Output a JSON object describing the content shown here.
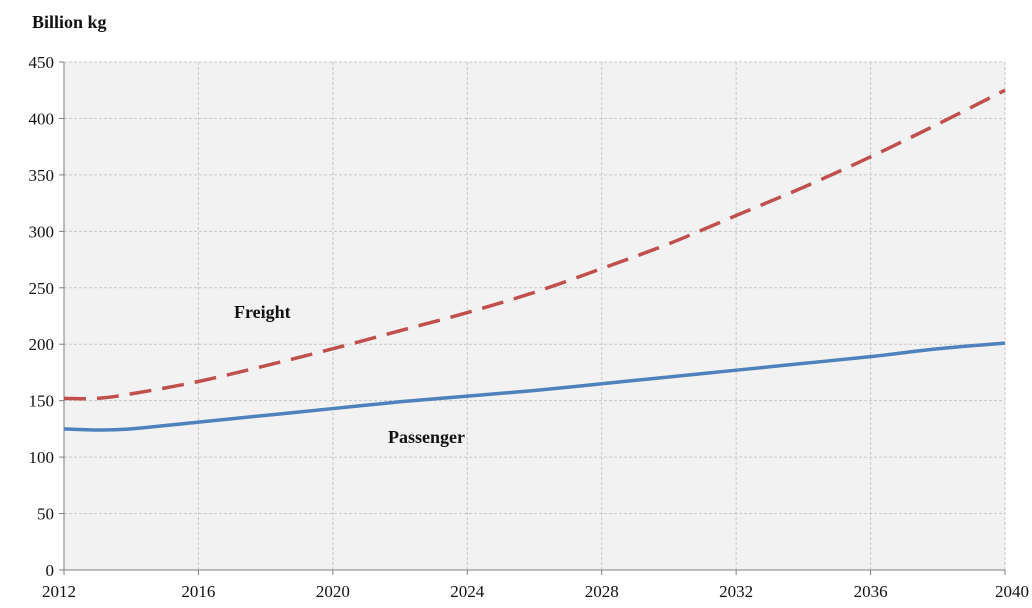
{
  "chart_data": {
    "type": "line",
    "ylabel": "Billion kg",
    "xlim": [
      2012,
      2040
    ],
    "ylim": [
      0,
      450
    ],
    "x_ticks": [
      2012,
      2016,
      2020,
      2024,
      2028,
      2032,
      2036,
      2040
    ],
    "y_ticks": [
      0,
      50,
      100,
      150,
      200,
      250,
      300,
      350,
      400,
      450
    ],
    "grid": true,
    "x": [
      2012,
      2013,
      2014,
      2016,
      2018,
      2020,
      2022,
      2024,
      2026,
      2028,
      2030,
      2032,
      2034,
      2036,
      2038,
      2040
    ],
    "series": [
      {
        "name": "Freight",
        "style": "dashed",
        "color": "#c0504d",
        "values": [
          152,
          152,
          156,
          167,
          181,
          196,
          212,
          228,
          246,
          267,
          289,
          314,
          339,
          366,
          395,
          425
        ]
      },
      {
        "name": "Passenger",
        "style": "solid",
        "color": "#4f81bd",
        "values": [
          125,
          124,
          125,
          131,
          137,
          143,
          149,
          154,
          159,
          165,
          171,
          177,
          183,
          189,
          196,
          201
        ]
      }
    ],
    "colors": {
      "plot_background": "#f2f2f2",
      "grid": "#c8c8c8"
    }
  }
}
